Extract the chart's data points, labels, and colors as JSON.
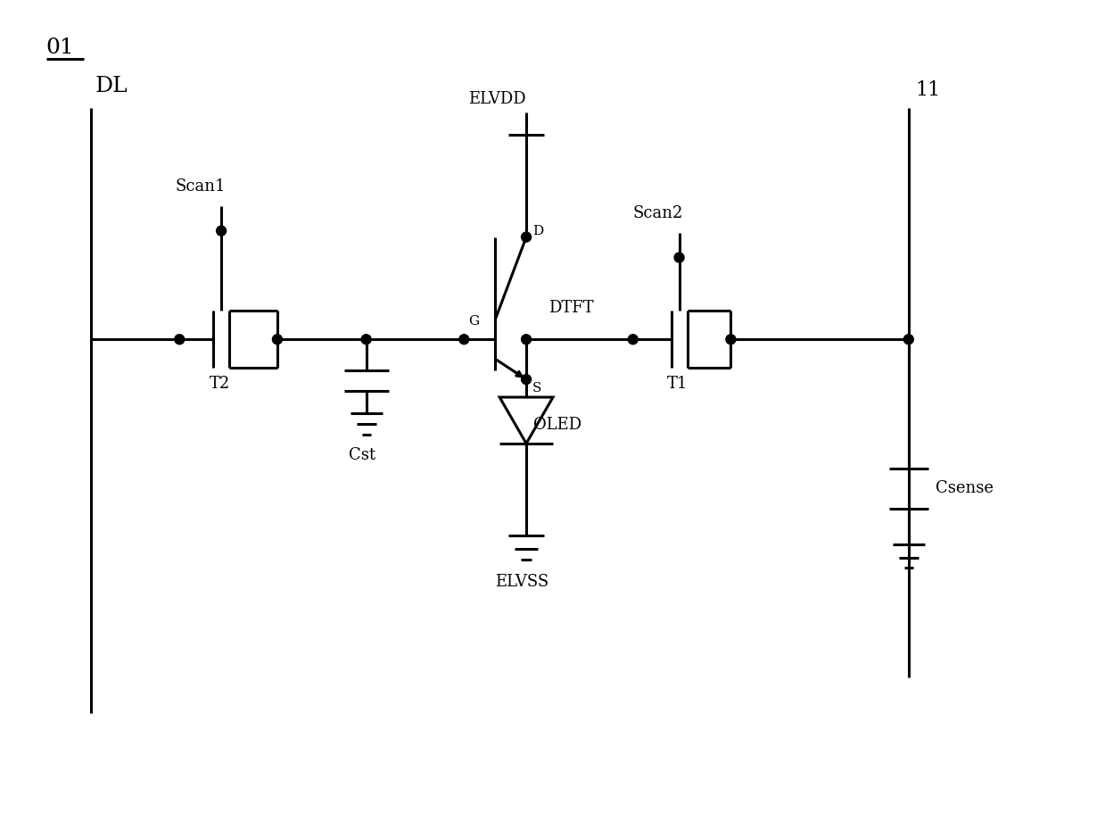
{
  "bg_color": "#ffffff",
  "line_color": "#000000",
  "lw": 2.2,
  "dot_r": 0.055,
  "fig_label": "01",
  "DL_label": "DL",
  "I1_label": "11",
  "ELVDD_label": "ELVDD",
  "ELVSS_label": "ELVSS",
  "OLED_label": "OLED",
  "Cst_label": "Cst",
  "Csense_label": "Csense",
  "DTFT_label": "DTFT",
  "T1_label": "T1",
  "T2_label": "T2",
  "Scan1_label": "Scan1",
  "Scan2_label": "Scan2",
  "D_label": "D",
  "G_label": "G",
  "S_label": "S"
}
